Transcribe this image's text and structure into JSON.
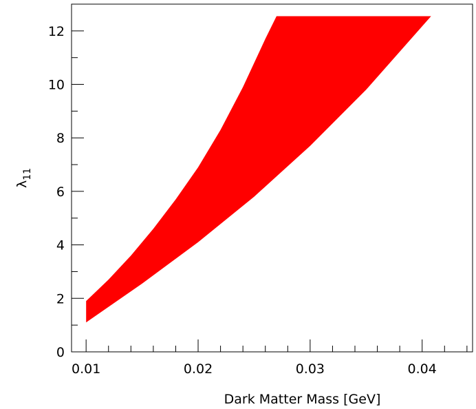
{
  "chart_data": {
    "type": "area",
    "title": "",
    "xlabel": "Dark Matter Mass [GeV]",
    "ylabel": "λ",
    "ylabel_subscript": "11",
    "xlim": [
      0.0087,
      0.0445
    ],
    "ylim": [
      0,
      13
    ],
    "xticks": [
      0.01,
      0.02,
      0.03,
      0.04
    ],
    "xtick_labels": [
      "0.01",
      "0.02",
      "0.03",
      "0.04"
    ],
    "yticks": [
      0,
      2,
      4,
      6,
      8,
      10,
      12
    ],
    "ytick_labels": [
      "0",
      "2",
      "4",
      "6",
      "8",
      "10",
      "12"
    ],
    "x_minor_step": 0.002,
    "y_minor_step": 1,
    "grid": false,
    "legend": "none",
    "fill_color": "#ff0000",
    "series": [
      {
        "region": "allowed",
        "upper": {
          "x": [
            0.01,
            0.012,
            0.014,
            0.016,
            0.018,
            0.02,
            0.022,
            0.024,
            0.026,
            0.027,
            0.03,
            0.035,
            0.0408
          ],
          "y": [
            1.9,
            2.7,
            3.6,
            4.6,
            5.7,
            6.9,
            8.3,
            9.9,
            11.7,
            12.55,
            12.55,
            12.55,
            12.55
          ]
        },
        "lower": {
          "x": [
            0.01,
            0.015,
            0.02,
            0.025,
            0.03,
            0.035,
            0.0408
          ],
          "y": [
            1.1,
            2.55,
            4.1,
            5.8,
            7.7,
            9.8,
            12.55
          ]
        }
      }
    ]
  }
}
